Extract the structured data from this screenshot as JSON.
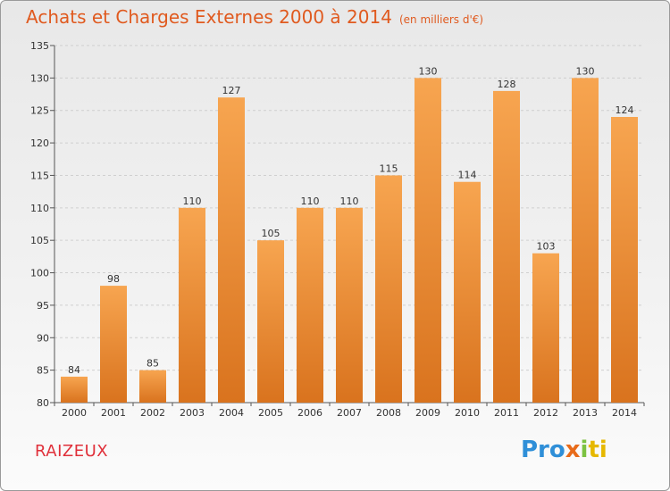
{
  "title": "Achats et Charges Externes 2000 à 2014",
  "subtitle": "(en milliers d'€)",
  "commune": "RAIZEUX",
  "logo": [
    "Pro",
    "x",
    "i",
    "ti"
  ],
  "colors": {
    "bar_top": "#f7a550",
    "bar_bottom": "#d9731e",
    "title": "#e05a1f",
    "commune": "#e0303a"
  },
  "chart_data": {
    "type": "bar",
    "categories": [
      "2000",
      "2001",
      "2002",
      "2003",
      "2004",
      "2005",
      "2006",
      "2007",
      "2008",
      "2009",
      "2010",
      "2011",
      "2012",
      "2013",
      "2014"
    ],
    "values": [
      84,
      98,
      85,
      110,
      127,
      105,
      110,
      110,
      115,
      130,
      114,
      128,
      103,
      130,
      124
    ],
    "ylim": [
      80,
      135
    ],
    "yticks": [
      80,
      85,
      90,
      95,
      100,
      105,
      110,
      115,
      120,
      125,
      130,
      135
    ],
    "grid": true,
    "title": "Achats et Charges Externes 2000 à 2014",
    "xlabel": "",
    "ylabel": ""
  }
}
